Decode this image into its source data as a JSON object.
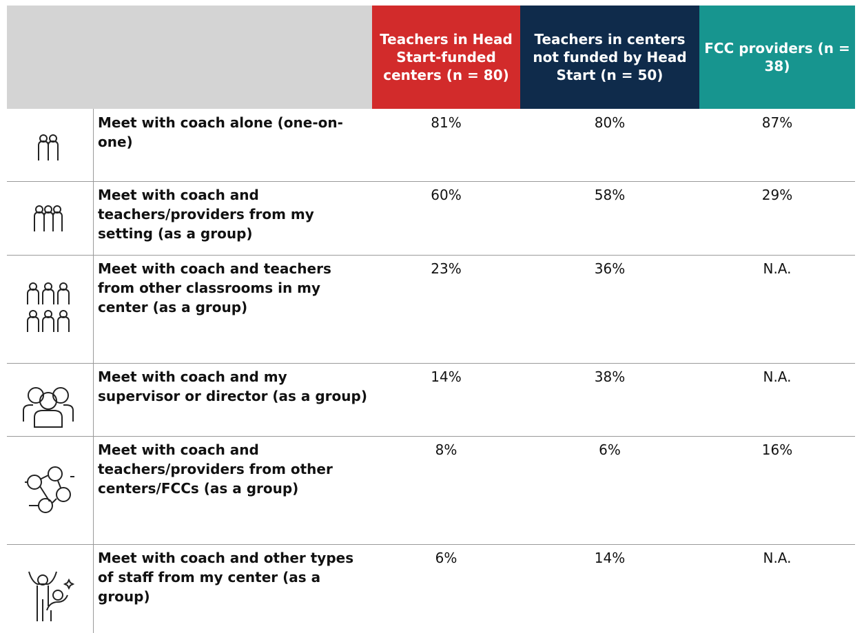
{
  "table": {
    "columns": [
      "Teachers in Head Start-funded centers (n = 80)",
      "Teachers in centers not funded by Head Start (n = 50)",
      "FCC providers (n = 38)"
    ],
    "rows": [
      {
        "label": "Meet with coach alone (one-on-one)",
        "values": [
          "81%",
          "80%",
          "87%"
        ]
      },
      {
        "label": "Meet with coach and teachers/providers from my setting (as a group)",
        "values": [
          "60%",
          "58%",
          "29%"
        ]
      },
      {
        "label": "Meet with coach and teachers from other classrooms in my center (as a group)",
        "values": [
          "23%",
          "36%",
          "N.A."
        ]
      },
      {
        "label": "Meet with coach and my supervisor or director (as a group)",
        "values": [
          "14%",
          "38%",
          "N.A."
        ]
      },
      {
        "label": "Meet with coach and teachers/providers from other centers/FCCs (as a group)",
        "values": [
          "8%",
          "6%",
          "16%"
        ]
      },
      {
        "label": "Meet with coach and other types of staff from my center (as a group)",
        "values": [
          "6%",
          "14%",
          "N.A."
        ]
      }
    ]
  }
}
